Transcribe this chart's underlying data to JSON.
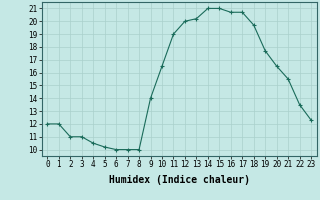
{
  "x": [
    0,
    1,
    2,
    3,
    4,
    5,
    6,
    7,
    8,
    9,
    10,
    11,
    12,
    13,
    14,
    15,
    16,
    17,
    18,
    19,
    20,
    21,
    22,
    23
  ],
  "y": [
    12,
    12,
    11,
    11,
    10.5,
    10.2,
    10,
    10,
    10,
    14,
    16.5,
    19,
    20,
    20.2,
    21,
    21,
    20.7,
    20.7,
    19.7,
    17.7,
    16.5,
    15.5,
    13.5,
    12.3
  ],
  "line_color": "#1a6b5a",
  "marker": "+",
  "marker_size": 3,
  "bg_color": "#c5e8e5",
  "grid_color": "#aad0cc",
  "xlabel": "Humidex (Indice chaleur)",
  "xlabel_fontsize": 7,
  "xlim": [
    -0.5,
    23.5
  ],
  "ylim": [
    9.5,
    21.5
  ],
  "yticks": [
    10,
    11,
    12,
    13,
    14,
    15,
    16,
    17,
    18,
    19,
    20,
    21
  ],
  "xticks": [
    0,
    1,
    2,
    3,
    4,
    5,
    6,
    7,
    8,
    9,
    10,
    11,
    12,
    13,
    14,
    15,
    16,
    17,
    18,
    19,
    20,
    21,
    22,
    23
  ],
  "tick_fontsize": 5.5,
  "linewidth": 0.8,
  "markeredgewidth": 0.8
}
